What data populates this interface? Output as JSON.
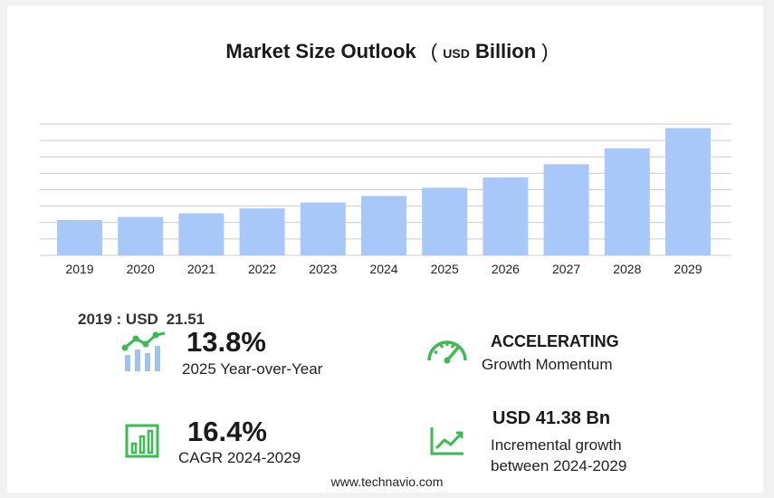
{
  "chart_data": {
    "type": "bar",
    "title": "Market Size Outlook",
    "unit_prefix": "USD",
    "unit_suffix": "Billion",
    "categories": [
      "2019",
      "2020",
      "2021",
      "2022",
      "2023",
      "2024",
      "2025",
      "2026",
      "2027",
      "2028",
      "2029"
    ],
    "values": [
      21.51,
      23.4,
      25.6,
      28.6,
      32.2,
      36.2,
      41.2,
      47.5,
      55.5,
      65.2,
      77.5
    ],
    "ylim": [
      0,
      80
    ],
    "grid": true,
    "bar_color": "#a8c8fa",
    "grid_color": "#cccccc"
  },
  "baseline": {
    "label": "2019 : USD",
    "value": "21.51"
  },
  "stats": {
    "yoy": {
      "value": "13.8%",
      "label": "2025 Year-over-Year",
      "icon": "growth-chart-icon"
    },
    "momentum": {
      "value": "ACCELERATING",
      "label": "Growth Momentum",
      "icon": "speedometer-icon"
    },
    "cagr": {
      "value": "16.4%",
      "label": "CAGR 2024-2029",
      "icon": "bar-chart-icon"
    },
    "incremental": {
      "value": "USD 41.38 Bn",
      "label_line1": "Incremental growth",
      "label_line2": "between 2024-2029",
      "icon": "trend-line-icon"
    }
  },
  "accent_color": "#3cba54",
  "footer": "www.technavio.com"
}
